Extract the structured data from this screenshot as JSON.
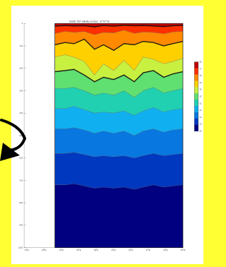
{
  "chart_data": {
    "type": "heatmap",
    "title": "SSS81 TBT Salinity Contour · 37°N?°W",
    "xlabel": "",
    "ylabel": "",
    "x_tick_labels": [
      "13°E",
      "25°E",
      "20°E",
      "25°E",
      "30°E",
      "35°E",
      "22°E",
      "37°E",
      "45°E",
      "40°W"
    ],
    "y_tick_labels": [
      "0",
      "100",
      "200",
      "300",
      "400",
      "500",
      "600",
      "700",
      "800",
      "900",
      "1000"
    ],
    "y_range": [
      0,
      1000
    ],
    "y_inverted": true,
    "colorbar_labels": [
      "38",
      "37",
      "36",
      "35",
      "34",
      "33",
      "32",
      "31",
      "30",
      "29",
      "28"
    ],
    "colormap": [
      "#c00000",
      "#ff3000",
      "#ff8a00",
      "#ffd000",
      "#c8f040",
      "#60e070",
      "#20d0b0",
      "#10b0f0",
      "#0878e0",
      "#0038c0",
      "#000080"
    ],
    "contour_levels": [
      38,
      37,
      36,
      35,
      34,
      33,
      32,
      31,
      30,
      29
    ],
    "series": [
      {
        "values": [
          12,
          9,
          11,
          10,
          15,
          9,
          12,
          8,
          10,
          9,
          11,
          14,
          10,
          9
        ]
      },
      {
        "values": [
          45,
          35,
          40,
          36,
          50,
          40,
          42,
          30,
          44,
          38,
          40,
          46,
          38,
          35
        ]
      },
      {
        "values": [
          95,
          85,
          90,
          70,
          115,
          95,
          120,
          90,
          95,
          80,
          85,
          100,
          90,
          80
        ]
      },
      {
        "values": [
          150,
          140,
          150,
          170,
          230,
          180,
          210,
          165,
          210,
          150,
          160,
          180,
          170,
          155
        ]
      },
      {
        "values": [
          215,
          210,
          205,
          230,
          260,
          240,
          250,
          230,
          260,
          220,
          210,
          240,
          225,
          215
        ]
      },
      {
        "values": [
          290,
          290,
          285,
          300,
          320,
          310,
          320,
          300,
          330,
          300,
          285,
          310,
          300,
          290
        ]
      },
      {
        "values": [
          380,
          380,
          370,
          385,
          400,
          395,
          400,
          390,
          410,
          390,
          375,
          395,
          385,
          380
        ]
      },
      {
        "values": [
          470,
          470,
          465,
          475,
          490,
          480,
          490,
          480,
          500,
          480,
          470,
          485,
          475,
          470
        ]
      },
      {
        "values": [
          580,
          580,
          575,
          585,
          595,
          590,
          595,
          590,
          600,
          590,
          580,
          590,
          585,
          580
        ]
      },
      {
        "values": [
          720,
          720,
          715,
          725,
          735,
          730,
          735,
          730,
          740,
          730,
          720,
          730,
          725,
          720
        ]
      }
    ],
    "x_positions": [
      0,
      0.08,
      0.15,
      0.23,
      0.31,
      0.38,
      0.46,
      0.54,
      0.62,
      0.69,
      0.77,
      0.85,
      0.92,
      1.0
    ],
    "legend_position": "right",
    "grid": false
  },
  "background_color": "#ffff33",
  "arrow_color": "#000000"
}
